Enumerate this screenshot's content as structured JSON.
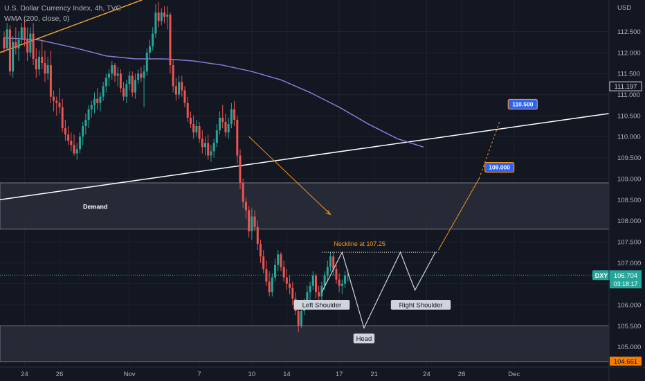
{
  "header": {
    "title": "U.S. Dollar Currency Index, 4h, TVC",
    "indicator": "WMA (200, close, 0)"
  },
  "colors": {
    "background": "#131722",
    "up": "#26a69a",
    "down": "#ef5350",
    "wma": "#8c7ad8",
    "trend_orange": "#f0a030",
    "annotation": "#f7931a",
    "zone_fill": "#2a2e39",
    "zone_border": "#787b86",
    "price_label": "#26a69a",
    "target_label": "#2962ff",
    "last_low_label": "#f57c00",
    "neckline": "#ffffff"
  },
  "chart_data": {
    "type": "candlestick",
    "symbol": "DXY",
    "currency": "USD",
    "timeframe": "4h",
    "ylim": [
      104.55,
      113.25
    ],
    "y_ticks": [
      105.0,
      105.5,
      106.0,
      106.5,
      107.0,
      107.5,
      108.0,
      108.5,
      109.0,
      109.5,
      110.0,
      110.5,
      111.0,
      111.5,
      112.0,
      112.5
    ],
    "x_ticks": [
      {
        "label": "24",
        "bar": 7
      },
      {
        "label": "26",
        "bar": 19
      },
      {
        "label": "Nov",
        "bar": 43
      },
      {
        "label": "7",
        "bar": 67
      },
      {
        "label": "10",
        "bar": 85
      },
      {
        "label": "14",
        "bar": 97
      },
      {
        "label": "17",
        "bar": 115
      },
      {
        "label": "21",
        "bar": 127
      },
      {
        "label": "24",
        "bar": 145
      },
      {
        "label": "28",
        "bar": 157
      },
      {
        "label": "Dec",
        "bar": 175
      }
    ],
    "current_price": 106.704,
    "countdown": "03:18:17",
    "last_low": 104.661,
    "extra_price_label": 111.197,
    "candles": [
      [
        112.35,
        112.5,
        112.0,
        112.1
      ],
      [
        112.1,
        112.7,
        112.05,
        112.55
      ],
      [
        112.55,
        112.65,
        111.45,
        111.55
      ],
      [
        111.55,
        112.4,
        111.4,
        112.25
      ],
      [
        112.25,
        112.6,
        111.95,
        112.1
      ],
      [
        112.1,
        112.5,
        111.8,
        112.3
      ],
      [
        112.3,
        112.7,
        112.2,
        112.6
      ],
      [
        112.6,
        112.75,
        112.15,
        112.3
      ],
      [
        112.3,
        112.6,
        111.8,
        112.0
      ],
      [
        112.0,
        112.6,
        111.9,
        112.45
      ],
      [
        112.45,
        112.7,
        111.7,
        111.85
      ],
      [
        111.85,
        112.1,
        111.4,
        111.6
      ],
      [
        111.6,
        112.05,
        111.45,
        111.9
      ],
      [
        111.9,
        112.3,
        111.6,
        111.75
      ],
      [
        111.75,
        112.05,
        111.3,
        111.5
      ],
      [
        111.5,
        111.9,
        111.35,
        111.7
      ],
      [
        111.7,
        112.05,
        110.8,
        110.95
      ],
      [
        110.95,
        111.1,
        110.6,
        110.85
      ],
      [
        110.85,
        110.95,
        110.5,
        110.8
      ],
      [
        110.8,
        111.15,
        110.55,
        110.7
      ],
      [
        110.7,
        110.9,
        110.1,
        110.2
      ],
      [
        110.2,
        110.4,
        109.9,
        110.05
      ],
      [
        110.05,
        110.25,
        109.8,
        109.9
      ],
      [
        109.9,
        110.1,
        109.65,
        109.8
      ],
      [
        109.8,
        110.05,
        109.55,
        109.6
      ],
      [
        109.6,
        109.85,
        109.45,
        109.7
      ],
      [
        109.7,
        110.1,
        109.6,
        110.0
      ],
      [
        110.0,
        110.35,
        109.8,
        110.25
      ],
      [
        110.25,
        110.55,
        110.05,
        110.4
      ],
      [
        110.4,
        110.75,
        110.2,
        110.65
      ],
      [
        110.65,
        110.85,
        110.45,
        110.75
      ],
      [
        110.75,
        111.05,
        110.55,
        110.9
      ],
      [
        110.9,
        111.15,
        110.65,
        110.8
      ],
      [
        110.8,
        111.05,
        110.6,
        110.95
      ],
      [
        110.95,
        111.3,
        110.85,
        111.2
      ],
      [
        111.2,
        111.5,
        111.05,
        111.4
      ],
      [
        111.4,
        111.6,
        111.2,
        111.5
      ],
      [
        111.5,
        111.8,
        111.35,
        111.7
      ],
      [
        111.7,
        111.75,
        111.3,
        111.45
      ],
      [
        111.45,
        111.65,
        111.2,
        111.5
      ],
      [
        111.5,
        111.6,
        111.05,
        111.15
      ],
      [
        111.15,
        111.3,
        110.85,
        110.95
      ],
      [
        110.95,
        111.35,
        110.8,
        111.25
      ],
      [
        111.25,
        111.55,
        111.1,
        111.45
      ],
      [
        111.45,
        111.55,
        110.95,
        111.05
      ],
      [
        111.05,
        111.5,
        110.9,
        111.35
      ],
      [
        111.35,
        111.6,
        111.25,
        111.5
      ],
      [
        111.5,
        111.65,
        111.3,
        111.4
      ],
      [
        111.4,
        111.7,
        110.7,
        111.55
      ],
      [
        111.55,
        112.1,
        111.45,
        112.0
      ],
      [
        112.0,
        112.3,
        111.85,
        112.15
      ],
      [
        112.15,
        112.6,
        112.05,
        112.45
      ],
      [
        112.45,
        113.15,
        112.35,
        112.95
      ],
      [
        112.95,
        113.2,
        112.6,
        112.75
      ],
      [
        112.75,
        113.05,
        112.65,
        112.95
      ],
      [
        112.95,
        113.1,
        112.7,
        112.85
      ],
      [
        112.85,
        113.1,
        112.55,
        112.9
      ],
      [
        112.9,
        112.95,
        111.5,
        111.7
      ],
      [
        111.7,
        111.85,
        111.05,
        111.2
      ],
      [
        111.2,
        111.4,
        110.85,
        111.0
      ],
      [
        111.0,
        111.45,
        110.9,
        111.3
      ],
      [
        111.3,
        111.45,
        110.95,
        111.1
      ],
      [
        111.1,
        111.2,
        110.7,
        110.8
      ],
      [
        110.8,
        110.95,
        110.35,
        110.45
      ],
      [
        110.45,
        110.6,
        110.2,
        110.3
      ],
      [
        110.3,
        110.5,
        109.95,
        110.1
      ],
      [
        110.1,
        110.4,
        110.0,
        110.25
      ],
      [
        110.25,
        110.35,
        109.85,
        109.95
      ],
      [
        109.95,
        110.15,
        109.6,
        109.75
      ],
      [
        109.75,
        110.0,
        109.55,
        109.85
      ],
      [
        109.85,
        110.05,
        109.45,
        109.55
      ],
      [
        109.55,
        109.8,
        109.4,
        109.65
      ],
      [
        109.65,
        109.95,
        109.5,
        109.85
      ],
      [
        109.85,
        110.3,
        109.75,
        110.15
      ],
      [
        110.15,
        110.6,
        110.05,
        110.45
      ],
      [
        110.45,
        110.75,
        110.2,
        110.35
      ],
      [
        110.35,
        110.55,
        110.0,
        110.1
      ],
      [
        110.1,
        110.45,
        109.95,
        110.3
      ],
      [
        110.3,
        110.8,
        110.2,
        110.65
      ],
      [
        110.65,
        110.85,
        110.25,
        110.4
      ],
      [
        110.4,
        110.5,
        109.35,
        109.55
      ],
      [
        109.55,
        109.7,
        108.75,
        108.9
      ],
      [
        108.9,
        109.0,
        108.3,
        108.45
      ],
      [
        108.45,
        108.55,
        108.05,
        108.25
      ],
      [
        108.25,
        108.35,
        107.6,
        107.75
      ],
      [
        107.75,
        108.3,
        107.55,
        108.1
      ],
      [
        108.1,
        108.25,
        107.75,
        107.85
      ],
      [
        107.85,
        108.0,
        107.3,
        107.45
      ],
      [
        107.45,
        107.55,
        107.0,
        107.15
      ],
      [
        107.15,
        107.3,
        106.75,
        106.85
      ],
      [
        106.85,
        107.05,
        106.45,
        106.55
      ],
      [
        106.55,
        106.8,
        106.2,
        106.3
      ],
      [
        106.3,
        106.75,
        106.2,
        106.65
      ],
      [
        106.65,
        107.1,
        106.55,
        106.95
      ],
      [
        106.95,
        107.3,
        106.8,
        107.2
      ],
      [
        107.2,
        107.25,
        106.8,
        106.9
      ],
      [
        106.9,
        107.05,
        106.55,
        106.65
      ],
      [
        106.65,
        106.85,
        106.35,
        106.5
      ],
      [
        106.5,
        106.7,
        106.25,
        106.4
      ],
      [
        106.4,
        106.55,
        106.0,
        106.15
      ],
      [
        106.15,
        106.3,
        105.75,
        105.85
      ],
      [
        105.85,
        106.0,
        105.35,
        105.5
      ],
      [
        105.5,
        105.95,
        105.45,
        105.85
      ],
      [
        105.85,
        106.15,
        105.75,
        106.05
      ],
      [
        106.05,
        106.45,
        105.95,
        106.3
      ],
      [
        106.3,
        106.55,
        106.1,
        106.45
      ],
      [
        106.45,
        106.8,
        106.35,
        106.7
      ],
      [
        106.7,
        106.75,
        106.15,
        106.3
      ],
      [
        106.3,
        106.45,
        106.05,
        106.2
      ],
      [
        106.2,
        106.55,
        106.1,
        106.45
      ],
      [
        106.45,
        106.8,
        106.35,
        106.7
      ],
      [
        106.7,
        107.05,
        106.55,
        106.9
      ],
      [
        106.9,
        107.25,
        106.8,
        107.15
      ],
      [
        107.15,
        107.25,
        106.7,
        106.85
      ],
      [
        106.85,
        106.95,
        106.5,
        106.6
      ],
      [
        106.6,
        106.75,
        106.3,
        106.45
      ],
      [
        106.45,
        106.6,
        106.25,
        106.5
      ],
      [
        106.5,
        106.8,
        106.4,
        106.7
      ],
      [
        106.7,
        106.85,
        106.55,
        106.704
      ]
    ],
    "wma": [
      [
        0,
        112.35
      ],
      [
        12,
        112.3
      ],
      [
        25,
        112.1
      ],
      [
        35,
        111.92
      ],
      [
        45,
        111.85
      ],
      [
        55,
        111.85
      ],
      [
        65,
        111.8
      ],
      [
        75,
        111.7
      ],
      [
        85,
        111.55
      ],
      [
        95,
        111.35
      ],
      [
        105,
        111.05
      ],
      [
        115,
        110.7
      ],
      [
        125,
        110.3
      ],
      [
        135,
        109.95
      ],
      [
        144,
        109.75
      ]
    ]
  },
  "annotations": {
    "demand_label": "Demand",
    "neckline_label": "Neckline at 107.25",
    "neckline_price": 107.25,
    "left_shoulder": "Left Shoulder",
    "head": "Head",
    "right_shoulder": "Right Shoulder",
    "target1": 109.0,
    "target2": 110.5,
    "target1_text": "109.000",
    "target2_text": "110.500",
    "demand_zone": [
      107.8,
      108.9
    ],
    "lower_zone": [
      104.65,
      105.5
    ]
  }
}
